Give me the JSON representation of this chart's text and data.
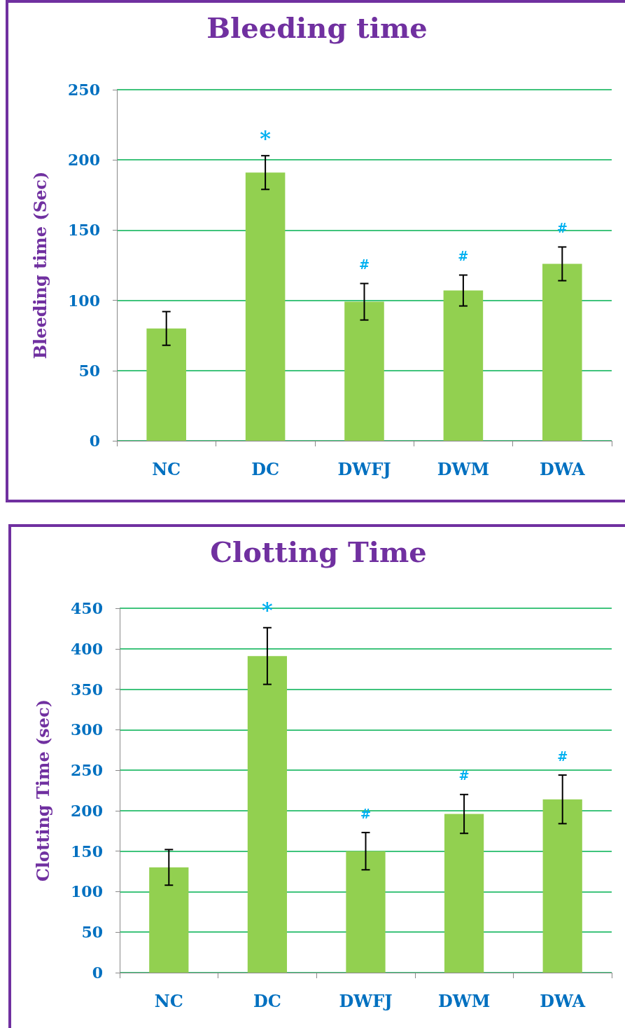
{
  "chart_data": [
    {
      "type": "bar",
      "title": "Bleeding time",
      "ylabel": "Bleeding time (Sec)",
      "categories": [
        "NC",
        "DC",
        "DWFJ",
        "DWM",
        "DWA"
      ],
      "values": [
        80,
        191,
        99,
        107,
        126
      ],
      "errors": [
        12,
        12,
        13,
        11,
        12
      ],
      "color": "#92d050",
      "ylim": [
        0,
        250
      ],
      "yticks": [
        0,
        50,
        100,
        150,
        200,
        250
      ],
      "grid": "y",
      "annotations": [
        {
          "text": "*",
          "x": "DC",
          "y": 191
        },
        {
          "text": "#",
          "x": "DWFJ",
          "y": 99
        },
        {
          "text": "#",
          "x": "DWM",
          "y": 107
        },
        {
          "text": "#",
          "x": "DWA",
          "y": 126
        }
      ]
    },
    {
      "type": "bar",
      "title": "Clotting Time",
      "ylabel": "Clotting Time (sec)",
      "categories": [
        "NC",
        "DC",
        "DWFJ",
        "DWM",
        "DWA"
      ],
      "values": [
        130,
        391,
        150,
        196,
        214
      ],
      "errors": [
        22,
        35,
        23,
        24,
        30
      ],
      "color": "#92d050",
      "ylim": [
        0,
        450
      ],
      "yticks": [
        0,
        50,
        100,
        150,
        200,
        250,
        300,
        350,
        400,
        450
      ],
      "grid": "y",
      "annotations": [
        {
          "text": "*",
          "x": "DC",
          "y": 391
        },
        {
          "text": "#",
          "x": "DWFJ",
          "y": 150
        },
        {
          "text": "#",
          "x": "DWM",
          "y": 196
        },
        {
          "text": "#",
          "x": "DWA",
          "y": 214
        }
      ]
    }
  ]
}
